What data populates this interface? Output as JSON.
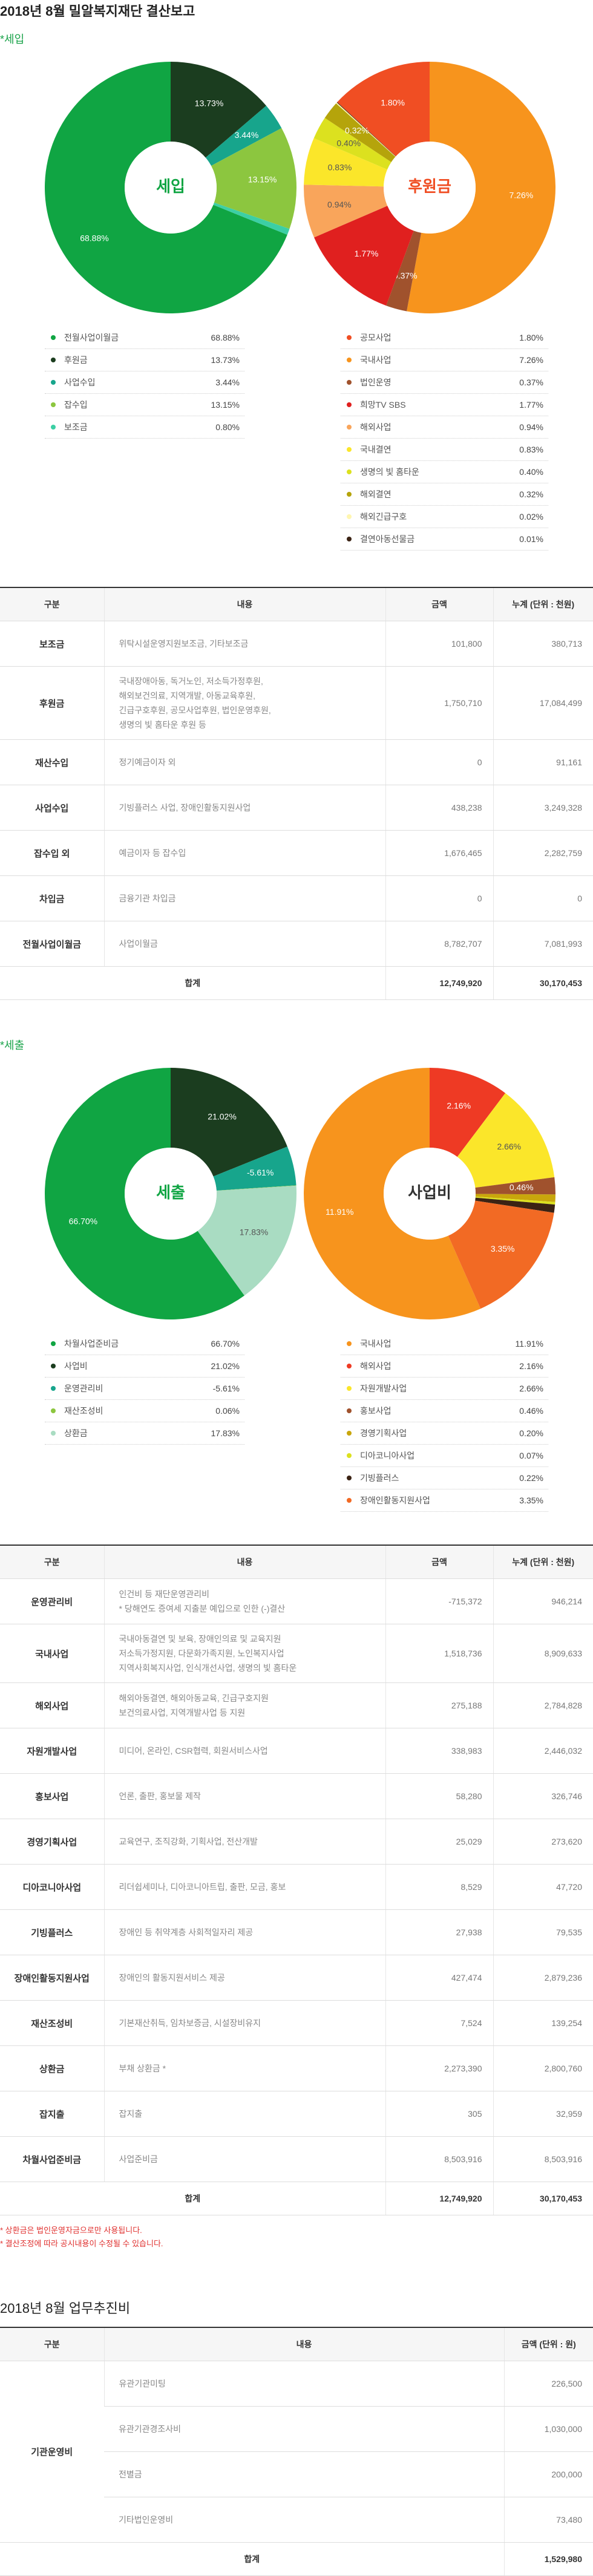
{
  "header": {
    "title": "2018년 8월 밀알복지재단 결산보고"
  },
  "income": {
    "label": "*세입",
    "charts": [
      {
        "type": "pie",
        "center_label": "세입",
        "categories": [
          "전월사업이월금",
          "후원금",
          "사업수입",
          "잡수입",
          "보조금"
        ],
        "values": [
          68.88,
          13.73,
          3.44,
          13.15,
          0.8
        ],
        "value_labels": [
          "68.88%",
          "13.73%",
          "3.44%",
          "13.15%",
          "0.80%"
        ],
        "colors": [
          "#10a543",
          "#1b3d1f",
          "#17a58c",
          "#8cc63f",
          "#3ccfa4"
        ]
      },
      {
        "type": "pie",
        "center_label": "후원금",
        "categories": [
          "공모사업",
          "국내사업",
          "법인운영",
          "희망TV SBS",
          "해외사업",
          "국내결연",
          "생명의 빛 홈타운",
          "해외결연",
          "해외긴급구호",
          "결연아동선물금"
        ],
        "values": [
          1.8,
          7.26,
          0.37,
          1.77,
          0.94,
          0.83,
          0.4,
          0.32,
          0.02,
          0.01
        ],
        "value_labels": [
          "1.80%",
          "7.26%",
          "0.37%",
          "1.77%",
          "0.94%",
          "0.83%",
          "0.40%",
          "0.32%",
          "0.02%",
          "0.01%"
        ],
        "colors": [
          "#f04e23",
          "#f7941d",
          "#a0522d",
          "#e0201f",
          "#f9a55b",
          "#fbe62a",
          "#dce11f",
          "#b5a40b",
          "#fff6b0",
          "#3b2314"
        ]
      }
    ],
    "table": {
      "columns": [
        "구분",
        "내용",
        "금액",
        "누계 (단위 : 천원)"
      ],
      "rows": [
        {
          "category": "보조금",
          "content": [
            "위탁시설운영지원보조금, 기타보조금"
          ],
          "amount": "101,800",
          "cumulative": "380,713"
        },
        {
          "category": "후원금",
          "content": [
            "국내장애아동, 독거노인, 저소득가정후원,",
            "해외보건의료, 지역개발, 아동교육후원,",
            "긴급구호후원, 공모사업후원, 법인운영후원,",
            "생명의 빛 홈타운 후원 등"
          ],
          "amount": "1,750,710",
          "cumulative": "17,084,499"
        },
        {
          "category": "재산수입",
          "content": [
            "정기예금이자 외"
          ],
          "amount": "0",
          "cumulative": "91,161"
        },
        {
          "category": "사업수입",
          "content": [
            "기빙플러스 사업, 장애인활동지원사업"
          ],
          "amount": "438,238",
          "cumulative": "3,249,328"
        },
        {
          "category": "잡수입 외",
          "content": [
            "예금이자 등 잡수입"
          ],
          "amount": "1,676,465",
          "cumulative": "2,282,759"
        },
        {
          "category": "차입금",
          "content": [
            "금융기관 차입금"
          ],
          "amount": "0",
          "cumulative": "0"
        },
        {
          "category": "전월사업이월금",
          "content": [
            "사업이월금"
          ],
          "amount": "8,782,707",
          "cumulative": "7,081,993"
        }
      ],
      "total": {
        "label": "합계",
        "amount": "12,749,920",
        "cumulative": "30,170,453"
      }
    }
  },
  "expenditure": {
    "label": "*세출",
    "charts": [
      {
        "type": "pie",
        "center_label": "세출",
        "categories": [
          "차월사업준비금",
          "사업비",
          "운영관리비",
          "재산조성비",
          "상환금"
        ],
        "values": [
          66.7,
          21.02,
          -5.61,
          0.06,
          17.83
        ],
        "value_labels": [
          "66.70%",
          "21.02%",
          "-5.61%",
          "0.06%",
          "17.83%"
        ],
        "colors": [
          "#10a543",
          "#1b3d1f",
          "#17a58c",
          "#8cc63f",
          "#a9dcc2"
        ]
      },
      {
        "type": "pie",
        "center_label": "사업비",
        "categories": [
          "국내사업",
          "해외사업",
          "자원개발사업",
          "홍보사업",
          "경영기획사업",
          "디아코니아사업",
          "기빙플러스",
          "장애인활동지원사업"
        ],
        "values": [
          11.91,
          2.16,
          2.66,
          0.46,
          0.2,
          0.07,
          0.22,
          3.35
        ],
        "value_labels": [
          "11.91%",
          "2.16%",
          "2.66%",
          "0.46%",
          "0.20%",
          "0.07%",
          "0.22%",
          "3.35%"
        ],
        "colors": [
          "#f7941d",
          "#ee3a24",
          "#fbe62a",
          "#a0522d",
          "#c9a60c",
          "#dce11f",
          "#3b2314",
          "#f26a24"
        ]
      }
    ],
    "table": {
      "columns": [
        "구분",
        "내용",
        "금액",
        "누계 (단위 : 천원)"
      ],
      "rows": [
        {
          "category": "운영관리비",
          "content": [
            "인건비 등 재단운영관리비",
            "* 당해연도 증여세 지출분 예입으로 인한 (-)결산"
          ],
          "amount": "-715,372",
          "cumulative": "946,214"
        },
        {
          "category": "국내사업",
          "content": [
            "국내아동결연 및 보육, 장애인의료 및 교육지원",
            "저소득가정지원, 다문화가족지원, 노인복지사업",
            "지역사회복지사업, 인식개선사업, 생명의 빛 홈타운"
          ],
          "amount": "1,518,736",
          "cumulative": "8,909,633"
        },
        {
          "category": "해외사업",
          "content": [
            "해외아동결연, 해외아동교육, 긴급구호지원",
            "보건의료사업, 지역개발사업 등 지원"
          ],
          "amount": "275,188",
          "cumulative": "2,784,828"
        },
        {
          "category": "자원개발사업",
          "content": [
            "미디어, 온라인, CSR협력, 회원서비스사업"
          ],
          "amount": "338,983",
          "cumulative": "2,446,032"
        },
        {
          "category": "홍보사업",
          "content": [
            "언론, 출판, 홍보물 제작"
          ],
          "amount": "58,280",
          "cumulative": "326,746"
        },
        {
          "category": "경영기획사업",
          "content": [
            "교육연구, 조직강화, 기획사업, 전산개발"
          ],
          "amount": "25,029",
          "cumulative": "273,620"
        },
        {
          "category": "디아코니아사업",
          "content": [
            "리더쉽세미나, 디아코니아트립, 출판, 모금, 홍보"
          ],
          "amount": "8,529",
          "cumulative": "47,720"
        },
        {
          "category": "기빙플러스",
          "content": [
            "장애인 등 취약계층 사회적일자리 제공"
          ],
          "amount": "27,938",
          "cumulative": "79,535"
        },
        {
          "category": "장애인활동지원사업",
          "content": [
            "장애인의 활동지원서비스 제공"
          ],
          "amount": "427,474",
          "cumulative": "2,879,236"
        },
        {
          "category": "재산조성비",
          "content": [
            "기본재산취득, 임차보증금, 시설장비유지"
          ],
          "amount": "7,524",
          "cumulative": "139,254"
        },
        {
          "category": "상환금",
          "content": [
            "부채 상환금 *"
          ],
          "amount": "2,273,390",
          "cumulative": "2,800,760"
        },
        {
          "category": "잡지출",
          "content": [
            "잡지출"
          ],
          "amount": "305",
          "cumulative": "32,959"
        },
        {
          "category": "차월사업준비금",
          "content": [
            "사업준비금"
          ],
          "amount": "8,503,916",
          "cumulative": "8,503,916"
        }
      ],
      "total": {
        "label": "합계",
        "amount": "12,749,920",
        "cumulative": "30,170,453"
      }
    },
    "notes": [
      "* 상환금은 법인운영자금으로만 사용됩니다.",
      "* 결산조정에 따라 공시내용이 수정될 수 있습니다."
    ]
  },
  "expenses": {
    "title": "2018년 8월 업무추진비",
    "table": {
      "columns": [
        "구분",
        "내용",
        "금액 (단위 : 원)"
      ],
      "groups": [
        {
          "category": "기관운영비",
          "items": [
            {
              "content": "유관기관미팅",
              "amount": "226,500"
            },
            {
              "content": "유관기관경조사비",
              "amount": "1,030,000"
            },
            {
              "content": "전별금",
              "amount": "200,000"
            },
            {
              "content": "기타법인운영비",
              "amount": "73,480"
            }
          ]
        }
      ],
      "total": {
        "label": "합계",
        "amount": "1,529,980"
      }
    }
  }
}
